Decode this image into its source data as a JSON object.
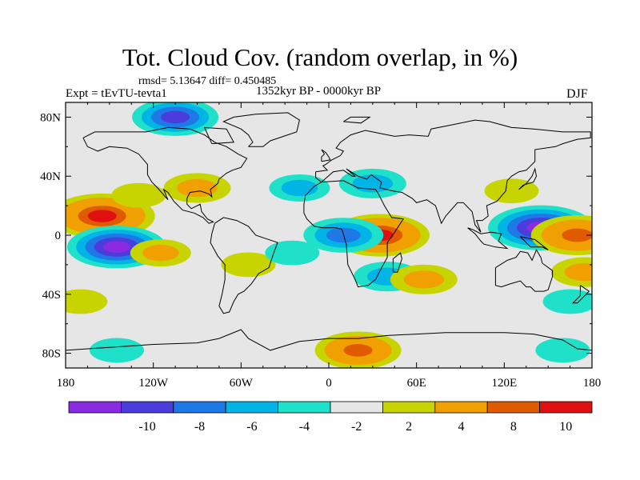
{
  "chart_data": {
    "type": "heatmap",
    "title": "Tot. Cloud Cov. (random overlap, in %)",
    "stats": "rmsd= 5.13647 diff= 0.450485",
    "experiment": "Expt = tEvTU-tevta1",
    "period": "1352kyr BP - 0000kyr BP",
    "season": "DJF",
    "x_ticks": [
      "180",
      "120W",
      "60W",
      "0",
      "60E",
      "120E",
      "180"
    ],
    "y_ticks": [
      "80N",
      "40N",
      "0",
      "40S",
      "80S"
    ],
    "xlim": [
      -180,
      180
    ],
    "ylim": [
      -90,
      90
    ],
    "colorbar": {
      "labels": [
        "-10",
        "-8",
        "-6",
        "-4",
        "-2",
        "2",
        "4",
        "8",
        "10"
      ],
      "colors": [
        "#8a2be2",
        "#4b3cdc",
        "#1e78e6",
        "#00b4e6",
        "#1fe0c8",
        "#e6e6e6",
        "#c8d400",
        "#f0a000",
        "#e05a00",
        "#e01010"
      ]
    },
    "anomalies": [
      {
        "lon": -155,
        "lat": 13,
        "value": 12
      },
      {
        "lon": -145,
        "lat": -8,
        "value": -11
      },
      {
        "lon": -115,
        "lat": -12,
        "value": 5
      },
      {
        "lon": -130,
        "lat": 27,
        "value": 4
      },
      {
        "lon": 35,
        "lat": 0,
        "value": 11
      },
      {
        "lon": 10,
        "lat": 0,
        "value": -8
      },
      {
        "lon": 40,
        "lat": -28,
        "value": -6
      },
      {
        "lon": 65,
        "lat": -30,
        "value": 6
      },
      {
        "lon": 145,
        "lat": 5,
        "value": -12
      },
      {
        "lon": 170,
        "lat": 0,
        "value": 10
      },
      {
        "lon": 175,
        "lat": -25,
        "value": 6
      },
      {
        "lon": 125,
        "lat": 30,
        "value": 4
      },
      {
        "lon": 30,
        "lat": 35,
        "value": -6
      },
      {
        "lon": -20,
        "lat": 32,
        "value": -5
      },
      {
        "lon": -90,
        "lat": 32,
        "value": 6
      },
      {
        "lon": -55,
        "lat": -20,
        "value": 4
      },
      {
        "lon": -25,
        "lat": -12,
        "value": -4
      },
      {
        "lon": -105,
        "lat": 80,
        "value": -9
      },
      {
        "lon": 20,
        "lat": -78,
        "value": 9
      },
      {
        "lon": -145,
        "lat": -78,
        "value": -4
      },
      {
        "lon": 160,
        "lat": -78,
        "value": -4
      },
      {
        "lon": 165,
        "lat": -45,
        "value": -4
      },
      {
        "lon": -170,
        "lat": -45,
        "value": 4
      }
    ]
  }
}
